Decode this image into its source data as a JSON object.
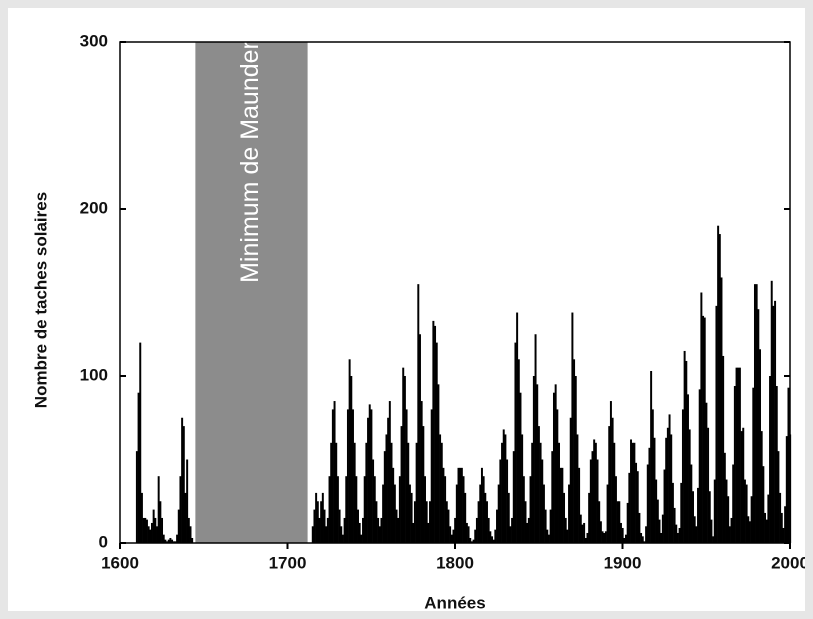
{
  "chart_data": {
    "type": "bar",
    "y_label": "Nombre de taches solaires",
    "x_label": "Années",
    "xlim": [
      1600,
      2000
    ],
    "xticks": [
      1600,
      1700,
      1800,
      1900,
      2000
    ],
    "ylim": [
      0,
      300
    ],
    "yticks": [
      0,
      100,
      200,
      300
    ],
    "color": "#000000",
    "band": {
      "label": "Minimum de Maunder",
      "range": [
        1645,
        1712
      ],
      "color": "#8c8c8c"
    },
    "x": [
      1610,
      1611,
      1612,
      1613,
      1614,
      1615,
      1616,
      1617,
      1618,
      1619,
      1620,
      1621,
      1622,
      1623,
      1624,
      1625,
      1626,
      1627,
      1628,
      1629,
      1630,
      1631,
      1632,
      1633,
      1634,
      1635,
      1636,
      1637,
      1638,
      1639,
      1640,
      1641,
      1642,
      1643,
      1644,
      1645,
      1715,
      1716,
      1717,
      1718,
      1719,
      1720,
      1721,
      1722,
      1723,
      1724,
      1725,
      1726,
      1727,
      1728,
      1729,
      1730,
      1731,
      1732,
      1733,
      1734,
      1735,
      1736,
      1737,
      1738,
      1739,
      1740,
      1741,
      1742,
      1743,
      1744,
      1745,
      1746,
      1747,
      1748,
      1749,
      1750,
      1751,
      1752,
      1753,
      1754,
      1755,
      1756,
      1757,
      1758,
      1759,
      1760,
      1761,
      1762,
      1763,
      1764,
      1765,
      1766,
      1767,
      1768,
      1769,
      1770,
      1771,
      1772,
      1773,
      1774,
      1775,
      1776,
      1777,
      1778,
      1779,
      1780,
      1781,
      1782,
      1783,
      1784,
      1785,
      1786,
      1787,
      1788,
      1789,
      1790,
      1791,
      1792,
      1793,
      1794,
      1795,
      1796,
      1797,
      1798,
      1799,
      1800,
      1801,
      1802,
      1803,
      1804,
      1805,
      1806,
      1807,
      1808,
      1809,
      1810,
      1811,
      1812,
      1813,
      1814,
      1815,
      1816,
      1817,
      1818,
      1819,
      1820,
      1821,
      1822,
      1823,
      1824,
      1825,
      1826,
      1827,
      1828,
      1829,
      1830,
      1831,
      1832,
      1833,
      1834,
      1835,
      1836,
      1837,
      1838,
      1839,
      1840,
      1841,
      1842,
      1843,
      1844,
      1845,
      1846,
      1847,
      1848,
      1849,
      1850,
      1851,
      1852,
      1853,
      1854,
      1855,
      1856,
      1857,
      1858,
      1859,
      1860,
      1861,
      1862,
      1863,
      1864,
      1865,
      1866,
      1867,
      1868,
      1869,
      1870,
      1871,
      1872,
      1873,
      1874,
      1875,
      1876,
      1877,
      1878,
      1879,
      1880,
      1881,
      1882,
      1883,
      1884,
      1885,
      1886,
      1887,
      1888,
      1889,
      1890,
      1891,
      1892,
      1893,
      1894,
      1895,
      1896,
      1897,
      1898,
      1899,
      1900,
      1901,
      1902,
      1903,
      1904,
      1905,
      1906,
      1907,
      1908,
      1909,
      1910,
      1911,
      1912,
      1913,
      1914,
      1915,
      1916,
      1917,
      1918,
      1919,
      1920,
      1921,
      1922,
      1923,
      1924,
      1925,
      1926,
      1927,
      1928,
      1929,
      1930,
      1931,
      1932,
      1933,
      1934,
      1935,
      1936,
      1937,
      1938,
      1939,
      1940,
      1941,
      1942,
      1943,
      1944,
      1945,
      1946,
      1947,
      1948,
      1949,
      1950,
      1951,
      1952,
      1953,
      1954,
      1955,
      1956,
      1957,
      1958,
      1959,
      1960,
      1961,
      1962,
      1963,
      1964,
      1965,
      1966,
      1967,
      1968,
      1969,
      1970,
      1971,
      1972,
      1973,
      1974,
      1975,
      1976,
      1977,
      1978,
      1979,
      1980,
      1981,
      1982,
      1983,
      1984,
      1985,
      1986,
      1987,
      1988,
      1989,
      1990,
      1991,
      1992,
      1993,
      1994,
      1995,
      1996,
      1997,
      1998,
      1999,
      2000
    ],
    "values": [
      55,
      90,
      120,
      30,
      15,
      15,
      14,
      10,
      8,
      12,
      20,
      15,
      10,
      40,
      25,
      15,
      5,
      2,
      1,
      2,
      3,
      2,
      1,
      1,
      5,
      20,
      40,
      75,
      70,
      30,
      50,
      15,
      10,
      3,
      0,
      0,
      10,
      20,
      30,
      25,
      15,
      25,
      30,
      20,
      10,
      15,
      40,
      60,
      80,
      85,
      60,
      40,
      20,
      10,
      5,
      15,
      40,
      80,
      110,
      100,
      80,
      60,
      40,
      20,
      12,
      5,
      15,
      40,
      60,
      75,
      83,
      80,
      50,
      40,
      25,
      15,
      10,
      15,
      35,
      55,
      65,
      75,
      85,
      60,
      45,
      35,
      20,
      15,
      40,
      70,
      105,
      100,
      80,
      60,
      35,
      30,
      12,
      25,
      60,
      155,
      125,
      85,
      70,
      40,
      25,
      12,
      25,
      80,
      133,
      130,
      120,
      95,
      65,
      60,
      45,
      40,
      25,
      20,
      10,
      5,
      8,
      15,
      35,
      45,
      45,
      45,
      40,
      30,
      12,
      10,
      3,
      1,
      2,
      8,
      15,
      25,
      35,
      45,
      40,
      30,
      25,
      15,
      7,
      4,
      2,
      8,
      20,
      35,
      50,
      60,
      68,
      65,
      50,
      30,
      10,
      15,
      55,
      120,
      138,
      110,
      90,
      65,
      40,
      25,
      12,
      15,
      40,
      60,
      100,
      125,
      95,
      70,
      60,
      50,
      35,
      20,
      8,
      5,
      20,
      55,
      90,
      95,
      80,
      60,
      45,
      45,
      30,
      15,
      8,
      35,
      75,
      138,
      110,
      100,
      65,
      45,
      17,
      11,
      12,
      3,
      6,
      30,
      50,
      55,
      62,
      60,
      50,
      25,
      13,
      7,
      6,
      7,
      35,
      70,
      85,
      75,
      60,
      40,
      25,
      25,
      12,
      9,
      3,
      5,
      24,
      42,
      62,
      60,
      60,
      48,
      43,
      18,
      6,
      4,
      1,
      10,
      47,
      57,
      103,
      80,
      63,
      38,
      26,
      14,
      6,
      17,
      44,
      63,
      69,
      77,
      65,
      36,
      21,
      11,
      6,
      9,
      36,
      80,
      115,
      109,
      89,
      68,
      47,
      31,
      16,
      10,
      33,
      92,
      150,
      136,
      135,
      84,
      69,
      31,
      14,
      4,
      38,
      142,
      190,
      185,
      159,
      112,
      54,
      38,
      28,
      10,
      15,
      47,
      94,
      105,
      105,
      105,
      67,
      69,
      38,
      35,
      16,
      13,
      28,
      93,
      155,
      155,
      140,
      116,
      67,
      46,
      18,
      14,
      29,
      100,
      157,
      142,
      145,
      94,
      55,
      30,
      18,
      9,
      22,
      64,
      93,
      65
    ]
  }
}
